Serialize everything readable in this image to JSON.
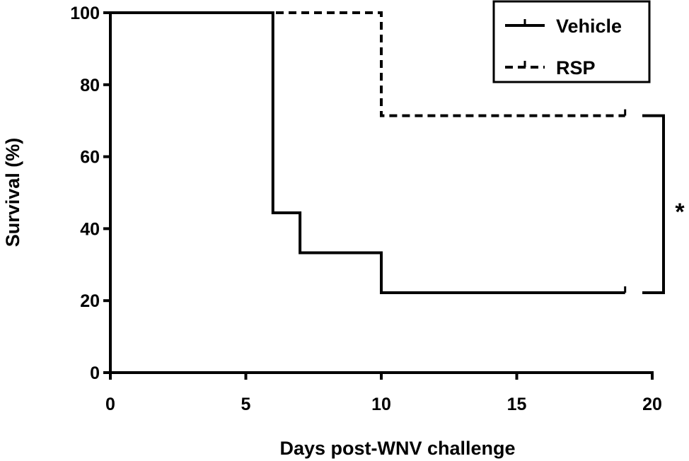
{
  "chart_data": {
    "type": "line",
    "step": true,
    "xlabel": "Days post-WNV challenge",
    "ylabel": "Survival (%)",
    "xlim": [
      0,
      20
    ],
    "ylim": [
      0,
      100
    ],
    "xticks": [
      0,
      5,
      10,
      15,
      20
    ],
    "yticks": [
      0,
      20,
      40,
      60,
      80,
      100
    ],
    "grid": false,
    "legend_position": "top-right",
    "series": [
      {
        "name": "Vehicle",
        "style": "solid",
        "color": "#000000",
        "x": [
          0,
          6,
          7,
          10,
          19
        ],
        "y": [
          100,
          44.4,
          33.3,
          22.2,
          22.2
        ],
        "censored": [
          {
            "x": 19,
            "y": 22.2
          }
        ]
      },
      {
        "name": "RSP",
        "style": "dashed",
        "color": "#000000",
        "x": [
          0,
          10,
          19
        ],
        "y": [
          100,
          71.4,
          71.4
        ],
        "censored": [
          {
            "x": 19,
            "y": 71.4
          }
        ]
      }
    ],
    "annotations": [
      {
        "type": "significance",
        "text": "*",
        "between": [
          "RSP",
          "Vehicle"
        ]
      }
    ]
  }
}
